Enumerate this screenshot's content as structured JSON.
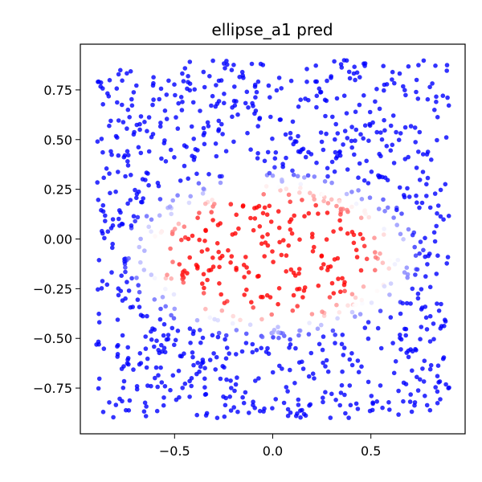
{
  "chart_data": {
    "type": "scatter",
    "title": "ellipse_a1 pred",
    "xlabel": "",
    "ylabel": "",
    "xlim": [
      -0.98,
      0.98
    ],
    "ylim": [
      -0.98,
      0.98
    ],
    "xticks": [
      -0.5,
      0.0,
      0.5
    ],
    "xtick_labels": [
      "−0.5",
      "0.0",
      "0.5"
    ],
    "yticks": [
      0.75,
      0.5,
      0.25,
      0.0,
      -0.25,
      -0.5,
      -0.75
    ],
    "ytick_labels": [
      "0.75",
      "0.50",
      "0.25",
      "0.00",
      "−0.25",
      "−0.50",
      "−0.75"
    ],
    "grid": false,
    "colormap": "bwr",
    "colors": {
      "low": "#0000ff",
      "mid": "#ffffff",
      "high": "#ff0000"
    },
    "x_domain": [
      -0.9,
      0.9
    ],
    "y_domain": [
      -0.9,
      0.9
    ],
    "ellipse_center": [
      0.0,
      -0.08
    ],
    "ellipse_semi_axes": [
      0.62,
      0.35
    ],
    "n_points": 1200
  }
}
